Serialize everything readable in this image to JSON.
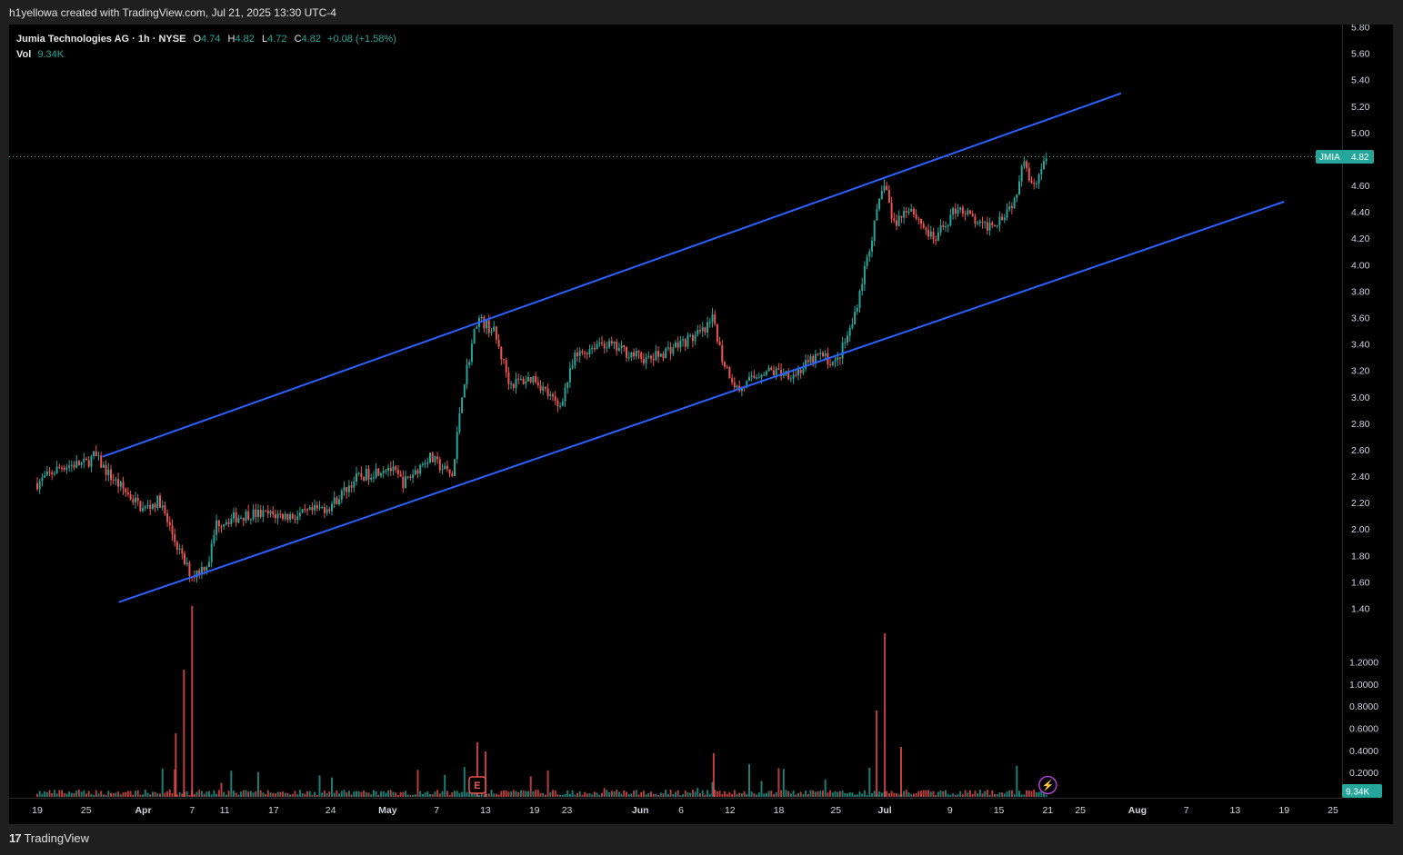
{
  "caption": "h1yellowa created with TradingView.com, Jul 21, 2025 13:30 UTC-4",
  "legend": {
    "symbol_line": "Jumia Technologies AG · 1h · NYSE",
    "open_label": "O",
    "open": "4.74",
    "high_label": "H",
    "high": "4.82",
    "low_label": "L",
    "low": "4.72",
    "close_label": "C",
    "close": "4.82",
    "change": "+0.08 (+1.58%)",
    "vol_label": "Vol",
    "vol": "9.34K"
  },
  "footer": {
    "logo_mark": "17",
    "brand": "TradingView"
  },
  "colors": {
    "up": "#26a69a",
    "down": "#ef5350",
    "channel": "#2962ff",
    "price_tag": "#26a69a",
    "earnings": "#ef5350",
    "dividend": "#b041d0"
  },
  "icons": {
    "earnings": "E",
    "dividend": "⚡"
  },
  "chart_data": {
    "type": "candlestick",
    "symbol": "JMIA",
    "interval": "1h",
    "x_tick_labels": [
      "19",
      "25",
      "Apr",
      "7",
      "11",
      "17",
      "24",
      "May",
      "7",
      "13",
      "19",
      "23",
      "Jun",
      "6",
      "12",
      "18",
      "25",
      "Jul",
      "9",
      "15",
      "21",
      "25",
      "Aug",
      "7",
      "13",
      "19",
      "25"
    ],
    "y_ticks": [
      "5.80",
      "5.60",
      "5.40",
      "5.20",
      "5.00",
      "4.80",
      "4.60",
      "4.40",
      "4.20",
      "4.00",
      "3.80",
      "3.60",
      "3.40",
      "3.20",
      "3.00",
      "2.80",
      "2.60",
      "2.40",
      "2.20",
      "2.00",
      "1.80",
      "1.60",
      "1.40"
    ],
    "volume_ticks": [
      "1.2000",
      "1.0000",
      "0.8000",
      "0.6000",
      "0.4000",
      "0.2000"
    ],
    "ylim": [
      1.4,
      5.8
    ],
    "last_price": 4.82,
    "last_price_label": "JMIA",
    "last_price_value": "4.82",
    "last_volume": "9.34K",
    "price_path": [
      {
        "d": "2025-03-19",
        "p": 2.35
      },
      {
        "d": "2025-03-22",
        "p": 2.48
      },
      {
        "d": "2025-03-25",
        "p": 2.5
      },
      {
        "d": "2025-03-26",
        "p": 2.56
      },
      {
        "d": "2025-03-28",
        "p": 2.4
      },
      {
        "d": "2025-04-01",
        "p": 2.15
      },
      {
        "d": "2025-04-03",
        "p": 2.22
      },
      {
        "d": "2025-04-04",
        "p": 2.05
      },
      {
        "d": "2025-04-06",
        "p": 1.75
      },
      {
        "d": "2025-04-07",
        "p": 1.65
      },
      {
        "d": "2025-04-09",
        "p": 1.75
      },
      {
        "d": "2025-04-10",
        "p": 2.05
      },
      {
        "d": "2025-04-14",
        "p": 2.12
      },
      {
        "d": "2025-04-20",
        "p": 2.1
      },
      {
        "d": "2025-04-24",
        "p": 2.18
      },
      {
        "d": "2025-04-27",
        "p": 2.38
      },
      {
        "d": "2025-05-01",
        "p": 2.48
      },
      {
        "d": "2025-05-03",
        "p": 2.35
      },
      {
        "d": "2025-05-06",
        "p": 2.55
      },
      {
        "d": "2025-05-09",
        "p": 2.4
      },
      {
        "d": "2025-05-10",
        "p": 3.0
      },
      {
        "d": "2025-05-11",
        "p": 3.3
      },
      {
        "d": "2025-05-12",
        "p": 3.6
      },
      {
        "d": "2025-05-14",
        "p": 3.5
      },
      {
        "d": "2025-05-16",
        "p": 3.1
      },
      {
        "d": "2025-05-19",
        "p": 3.15
      },
      {
        "d": "2025-05-22",
        "p": 2.92
      },
      {
        "d": "2025-05-24",
        "p": 3.3
      },
      {
        "d": "2025-05-27",
        "p": 3.42
      },
      {
        "d": "2025-06-02",
        "p": 3.28
      },
      {
        "d": "2025-06-05",
        "p": 3.38
      },
      {
        "d": "2025-06-09",
        "p": 3.5
      },
      {
        "d": "2025-06-10",
        "p": 3.6
      },
      {
        "d": "2025-06-11",
        "p": 3.3
      },
      {
        "d": "2025-06-13",
        "p": 3.05
      },
      {
        "d": "2025-06-16",
        "p": 3.2
      },
      {
        "d": "2025-06-20",
        "p": 3.18
      },
      {
        "d": "2025-06-23",
        "p": 3.32
      },
      {
        "d": "2025-06-25",
        "p": 3.25
      },
      {
        "d": "2025-06-27",
        "p": 3.55
      },
      {
        "d": "2025-06-29",
        "p": 4.1
      },
      {
        "d": "2025-07-01",
        "p": 4.65
      },
      {
        "d": "2025-07-02",
        "p": 4.3
      },
      {
        "d": "2025-07-04",
        "p": 4.45
      },
      {
        "d": "2025-07-07",
        "p": 4.18
      },
      {
        "d": "2025-07-10",
        "p": 4.45
      },
      {
        "d": "2025-07-13",
        "p": 4.28
      },
      {
        "d": "2025-07-15",
        "p": 4.35
      },
      {
        "d": "2025-07-17",
        "p": 4.5
      },
      {
        "d": "2025-07-18",
        "p": 4.85
      },
      {
        "d": "2025-07-19",
        "p": 4.6
      },
      {
        "d": "2025-07-20",
        "p": 4.7
      },
      {
        "d": "2025-07-21",
        "p": 4.82
      }
    ],
    "channel_lines": [
      {
        "name": "",
        "from": {
          "d": "2025-03-27",
          "p": 2.55
        },
        "to": {
          "d": "2025-07-30",
          "p": 5.3
        }
      },
      {
        "name": "",
        "from": {
          "d": "2025-03-29",
          "p": 1.45
        },
        "to": {
          "d": "2025-08-19",
          "p": 4.48
        }
      }
    ],
    "events": [
      {
        "type": "earnings",
        "d": "2025-05-12"
      },
      {
        "type": "dividend",
        "d": "2025-07-21"
      }
    ]
  }
}
